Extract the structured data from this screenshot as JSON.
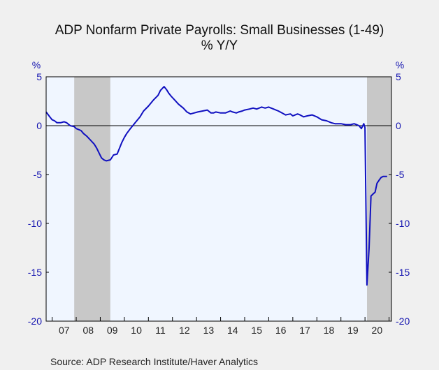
{
  "chart_data": {
    "type": "line",
    "title": "ADP Nonfarm Private Payrolls: Small Businesses (1-49)",
    "subtitle": "% Y/Y",
    "y_unit_left": "%",
    "y_unit_right": "%",
    "source": "Source:  ADP Research Institute/Haver Analytics",
    "ylim": [
      -20,
      5
    ],
    "y_ticks": [
      5,
      0,
      -5,
      -10,
      -15,
      -20
    ],
    "xlim": [
      2006.75,
      2021.1
    ],
    "x_tick_labels": [
      "07",
      "08",
      "09",
      "10",
      "11",
      "12",
      "13",
      "14",
      "15",
      "16",
      "17",
      "18",
      "19",
      "20"
    ],
    "x_tick_label_years": [
      2007,
      2008,
      2009,
      2010,
      2011,
      2012,
      2013,
      2014,
      2015,
      2016,
      2017,
      2018,
      2019,
      2020
    ],
    "recessions": [
      [
        2007.917,
        2009.417
      ],
      [
        2020.083,
        2021.1
      ]
    ],
    "zero_line": true,
    "grid": false,
    "colors": {
      "line": "#1010c0",
      "plot_bg": "#f0f6ff",
      "recession": "#c8c8c8",
      "axis_text": "#1515b0",
      "page_bg": "#f0f0f0"
    },
    "series": [
      {
        "x": [
          2006.75,
          2006.9,
          2007.0,
          2007.1,
          2007.2,
          2007.35,
          2007.5,
          2007.6,
          2007.75,
          2007.92,
          2008.0,
          2008.2,
          2008.3,
          2008.45,
          2008.6,
          2008.75,
          2008.85,
          2008.95,
          2009.05,
          2009.15,
          2009.25,
          2009.42,
          2009.55,
          2009.7,
          2009.75,
          2009.9,
          2010.0,
          2010.1,
          2010.25,
          2010.45,
          2010.65,
          2010.8,
          2011.0,
          2011.2,
          2011.4,
          2011.5,
          2011.65,
          2011.75,
          2011.85,
          2011.95,
          2012.1,
          2012.25,
          2012.45,
          2012.6,
          2012.75,
          2012.9,
          2013.05,
          2013.25,
          2013.45,
          2013.6,
          2013.7,
          2013.8,
          2014.0,
          2014.2,
          2014.4,
          2014.5,
          2014.65,
          2014.75,
          2014.9,
          2015.0,
          2015.2,
          2015.35,
          2015.5,
          2015.6,
          2015.7,
          2015.85,
          2016.0,
          2016.2,
          2016.4,
          2016.55,
          2016.7,
          2016.9,
          2017.0,
          2017.1,
          2017.2,
          2017.3,
          2017.45,
          2017.6,
          2017.8,
          2018.0,
          2018.2,
          2018.4,
          2018.6,
          2018.75,
          2018.9,
          2019.0,
          2019.2,
          2019.4,
          2019.55,
          2019.65,
          2019.75,
          2019.85,
          2019.95,
          2020.0,
          2020.08,
          2020.17,
          2020.25,
          2020.33,
          2020.42,
          2020.5,
          2020.58,
          2020.67,
          2020.75,
          2020.83,
          2020.92
        ],
        "y": [
          1.4,
          0.9,
          0.6,
          0.5,
          0.3,
          0.3,
          0.4,
          0.3,
          0.0,
          -0.1,
          -0.3,
          -0.5,
          -0.8,
          -1.1,
          -1.5,
          -1.9,
          -2.3,
          -2.8,
          -3.3,
          -3.5,
          -3.6,
          -3.5,
          -3.0,
          -2.9,
          -2.6,
          -1.7,
          -1.2,
          -0.8,
          -0.3,
          0.3,
          0.9,
          1.5,
          2.0,
          2.6,
          3.1,
          3.6,
          4.0,
          3.7,
          3.3,
          3.0,
          2.6,
          2.2,
          1.8,
          1.4,
          1.2,
          1.3,
          1.4,
          1.5,
          1.6,
          1.3,
          1.3,
          1.4,
          1.3,
          1.3,
          1.5,
          1.4,
          1.3,
          1.4,
          1.5,
          1.6,
          1.7,
          1.8,
          1.7,
          1.8,
          1.9,
          1.8,
          1.9,
          1.7,
          1.5,
          1.3,
          1.1,
          1.2,
          1.0,
          1.1,
          1.2,
          1.1,
          0.9,
          1.0,
          1.1,
          0.9,
          0.6,
          0.5,
          0.3,
          0.2,
          0.2,
          0.2,
          0.1,
          0.1,
          0.2,
          0.1,
          0.0,
          -0.3,
          0.2,
          -0.2,
          -16.3,
          -12.5,
          -7.2,
          -7.0,
          -6.8,
          -5.9,
          -5.6,
          -5.3,
          -5.2,
          -5.2,
          -5.2
        ]
      }
    ]
  }
}
